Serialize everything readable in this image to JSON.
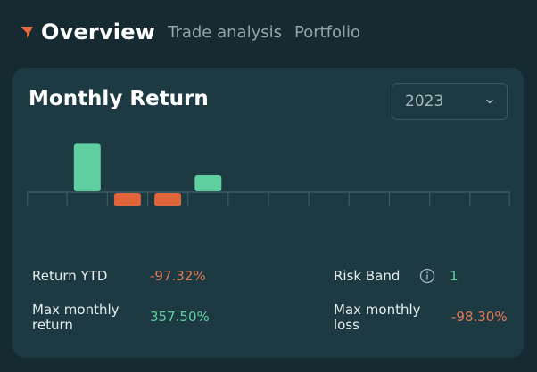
{
  "nav": {
    "tabs": [
      {
        "label": "Overview",
        "active": true
      },
      {
        "label": "Trade analysis",
        "active": false
      },
      {
        "label": "Portfolio",
        "active": false
      }
    ]
  },
  "card": {
    "title": "Monthly Return",
    "year_select": {
      "value": "2023",
      "icon": "chevron-down-icon"
    }
  },
  "chart_data": {
    "type": "bar",
    "categories": [
      "",
      "",
      "",
      "",
      "",
      "",
      "",
      "",
      "",
      "",
      "",
      ""
    ],
    "values": [
      0,
      357.5,
      -98.3,
      -98.3,
      120,
      0,
      0,
      0,
      0,
      0,
      0,
      0
    ],
    "title": "",
    "xlabel": "",
    "ylabel": "",
    "ylim": [
      -200,
      400
    ],
    "grid": false,
    "colors": {
      "positive": "#5fcf9f",
      "negative": "#e0653a",
      "axis": "#3b5a61"
    }
  },
  "stats": {
    "return_ytd": {
      "label": "Return YTD",
      "value": "-97.32%"
    },
    "risk_band": {
      "label": "Risk Band",
      "value": "1",
      "icon": "info-icon"
    },
    "max_monthly_return": {
      "label_line1": "Max monthly",
      "label_line2": "return",
      "value": "357.50%"
    },
    "max_monthly_loss": {
      "label_line1": "Max monthly",
      "label_line2": "loss",
      "value": "-98.30%"
    }
  },
  "colors": {
    "background": "#152a31",
    "card": "#1d3a42",
    "accent": "#e8663a",
    "positive": "#5fcf9f",
    "negative": "#e07a52"
  }
}
